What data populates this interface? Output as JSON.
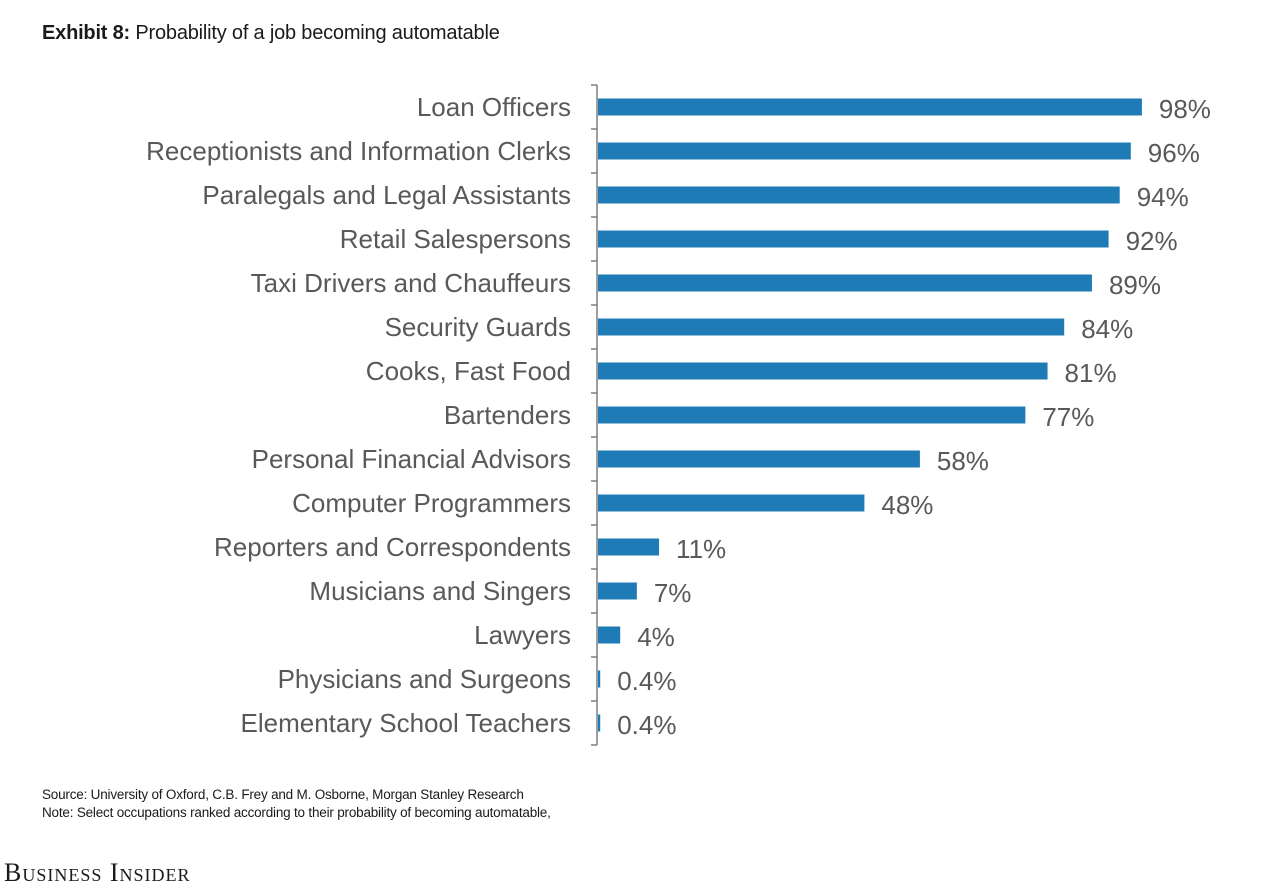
{
  "header": {
    "exhibit_label": "Exhibit 8:",
    "title": "Probability of a job becoming automatable"
  },
  "chart_data": {
    "type": "bar",
    "orientation": "horizontal",
    "categories": [
      "Loan Officers",
      "Receptionists and Information Clerks",
      "Paralegals and Legal Assistants",
      "Retail Salespersons",
      "Taxi Drivers and Chauffeurs",
      "Security Guards",
      "Cooks, Fast Food",
      "Bartenders",
      "Personal Financial Advisors",
      "Computer Programmers",
      "Reporters and Correspondents",
      "Musicians and Singers",
      "Lawyers",
      "Physicians and Surgeons",
      "Elementary School Teachers"
    ],
    "values": [
      98,
      96,
      94,
      92,
      89,
      84,
      81,
      77,
      58,
      48,
      11,
      7,
      4,
      0.4,
      0.4
    ],
    "value_labels": [
      "98%",
      "96%",
      "94%",
      "92%",
      "89%",
      "84%",
      "81%",
      "77%",
      "58%",
      "48%",
      "11%",
      "7%",
      "4%",
      "0.4%",
      "0.4%"
    ],
    "unit": "%",
    "xlim": [
      0,
      100
    ],
    "grid": false,
    "bar_color": "#1f7bb6"
  },
  "footer": {
    "source": "Source: University of Oxford, C.B. Frey and M. Osborne, Morgan Stanley Research",
    "note": "Note: Select occupations ranked according to their probability of becoming automatable,"
  },
  "brand": {
    "name": "Business Insider"
  }
}
